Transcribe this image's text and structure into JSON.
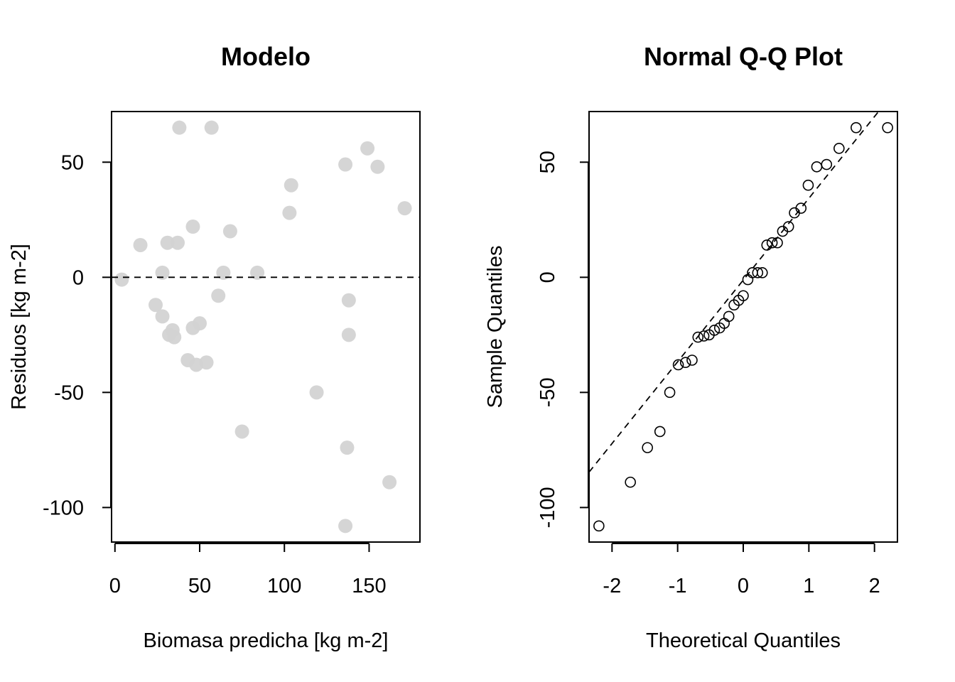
{
  "chart_data": [
    {
      "type": "scatter",
      "title": "Modelo",
      "xlabel": "Biomasa predicha [kg m-2]",
      "ylabel": "Residuos [kg m-2]",
      "xlim": [
        -2,
        180
      ],
      "ylim": [
        -115,
        72
      ],
      "xticks": [
        0,
        50,
        100,
        150
      ],
      "yticks": [
        50,
        0,
        -50,
        -100
      ],
      "xtick_labels": [
        "0",
        "50",
        "100",
        "150"
      ],
      "ytick_labels": [
        "50",
        "0",
        "-50",
        "-100"
      ],
      "reference_line": {
        "y": 0,
        "style": "dashed"
      },
      "marker": {
        "shape": "filled-circle",
        "color": "#d3d3d3"
      },
      "points": [
        {
          "x": 4,
          "y": -1
        },
        {
          "x": 15,
          "y": 14
        },
        {
          "x": 24,
          "y": -12
        },
        {
          "x": 28,
          "y": 2
        },
        {
          "x": 28,
          "y": -17
        },
        {
          "x": 31,
          "y": 15
        },
        {
          "x": 32,
          "y": -25
        },
        {
          "x": 34,
          "y": -23
        },
        {
          "x": 35,
          "y": -26
        },
        {
          "x": 37,
          "y": 15
        },
        {
          "x": 38,
          "y": 65
        },
        {
          "x": 43,
          "y": -36
        },
        {
          "x": 46,
          "y": -22
        },
        {
          "x": 46,
          "y": 22
        },
        {
          "x": 48,
          "y": -38
        },
        {
          "x": 50,
          "y": -20
        },
        {
          "x": 54,
          "y": -37
        },
        {
          "x": 57,
          "y": 65
        },
        {
          "x": 61,
          "y": -8
        },
        {
          "x": 64,
          "y": 2
        },
        {
          "x": 68,
          "y": 20
        },
        {
          "x": 75,
          "y": -67
        },
        {
          "x": 84,
          "y": 2
        },
        {
          "x": 103,
          "y": 28
        },
        {
          "x": 104,
          "y": 40
        },
        {
          "x": 119,
          "y": -50
        },
        {
          "x": 136,
          "y": 49
        },
        {
          "x": 136,
          "y": -108
        },
        {
          "x": 137,
          "y": -74
        },
        {
          "x": 138,
          "y": -10
        },
        {
          "x": 138,
          "y": -25
        },
        {
          "x": 149,
          "y": 56
        },
        {
          "x": 155,
          "y": 48
        },
        {
          "x": 162,
          "y": -89
        },
        {
          "x": 171,
          "y": 30
        }
      ]
    },
    {
      "type": "scatter",
      "title": "Normal Q-Q Plot",
      "xlabel": "Theoretical Quantiles",
      "ylabel": "Sample Quantiles",
      "xlim": [
        -2.35,
        2.35
      ],
      "ylim": [
        -115,
        72
      ],
      "xticks": [
        -2,
        -1,
        0,
        1,
        2
      ],
      "yticks": [
        50,
        0,
        -50,
        -100
      ],
      "xtick_labels": [
        "-2",
        "-1",
        "0",
        "1",
        "2"
      ],
      "ytick_labels": [
        "50",
        "0",
        "-50",
        "-100"
      ],
      "reference_line": {
        "intercept": -1.2,
        "slope": 35.5,
        "style": "dashed"
      },
      "marker": {
        "shape": "open-circle",
        "color": "#000000"
      },
      "points": [
        {
          "x": -2.2,
          "y": -108
        },
        {
          "x": -1.72,
          "y": -89
        },
        {
          "x": -1.46,
          "y": -74
        },
        {
          "x": -1.27,
          "y": -67
        },
        {
          "x": -1.12,
          "y": -50
        },
        {
          "x": -0.99,
          "y": -38
        },
        {
          "x": -0.88,
          "y": -37
        },
        {
          "x": -0.78,
          "y": -36
        },
        {
          "x": -0.69,
          "y": -26
        },
        {
          "x": -0.6,
          "y": -25.5
        },
        {
          "x": -0.52,
          "y": -25
        },
        {
          "x": -0.44,
          "y": -23
        },
        {
          "x": -0.36,
          "y": -22
        },
        {
          "x": -0.29,
          "y": -20
        },
        {
          "x": -0.22,
          "y": -17
        },
        {
          "x": -0.14,
          "y": -12
        },
        {
          "x": -0.07,
          "y": -10
        },
        {
          "x": 0.0,
          "y": -8
        },
        {
          "x": 0.07,
          "y": -1
        },
        {
          "x": 0.14,
          "y": 2
        },
        {
          "x": 0.22,
          "y": 2
        },
        {
          "x": 0.29,
          "y": 2
        },
        {
          "x": 0.36,
          "y": 14
        },
        {
          "x": 0.44,
          "y": 15
        },
        {
          "x": 0.52,
          "y": 15
        },
        {
          "x": 0.6,
          "y": 20
        },
        {
          "x": 0.69,
          "y": 22
        },
        {
          "x": 0.78,
          "y": 28
        },
        {
          "x": 0.88,
          "y": 30
        },
        {
          "x": 0.99,
          "y": 40
        },
        {
          "x": 1.12,
          "y": 48
        },
        {
          "x": 1.27,
          "y": 49
        },
        {
          "x": 1.46,
          "y": 56
        },
        {
          "x": 1.72,
          "y": 65
        },
        {
          "x": 2.2,
          "y": 65
        }
      ]
    }
  ]
}
